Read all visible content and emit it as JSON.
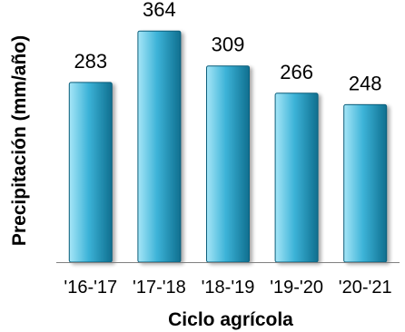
{
  "chart_data": {
    "type": "bar",
    "categories": [
      "'16-'17",
      "'17-'18",
      "'18-'19",
      "'19-'20",
      "'20-'21"
    ],
    "values": [
      283,
      364,
      309,
      266,
      248
    ],
    "data_labels": [
      "283",
      "364",
      "309",
      "266",
      "248"
    ],
    "xlabel": "Ciclo agrícola",
    "ylabel": "Precipitación (mm/año)",
    "ylim": [
      0,
      400
    ],
    "grid": false,
    "legend": "none",
    "colors": {
      "bar_light": "#a6e6f7",
      "bar_mid": "#3cb3d8",
      "bar_dark": "#0f6f8f",
      "bar_edge": "#0d5f7c",
      "axis": "#808080"
    }
  }
}
